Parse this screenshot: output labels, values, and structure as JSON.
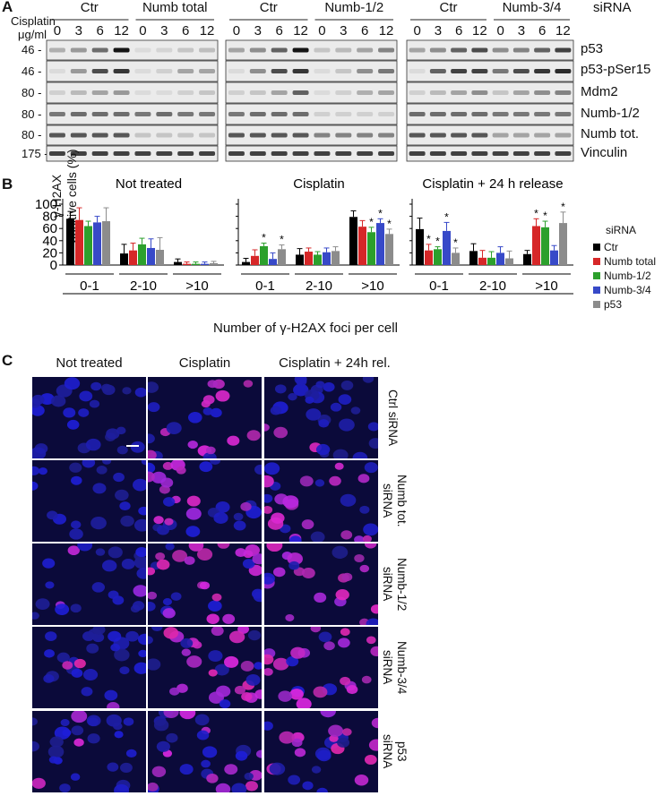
{
  "panelA": {
    "letter": "A",
    "treatment_label_line1": "Cisplatin",
    "treatment_label_line2": "μg/ml",
    "sirna_suffix": "siRNA",
    "groups": [
      {
        "header": "Ctr",
        "doses": [
          "0",
          "3",
          "6",
          "12"
        ]
      },
      {
        "header": "Numb total",
        "doses": [
          "0",
          "3",
          "6",
          "12"
        ]
      },
      {
        "header": "Ctr",
        "doses": [
          "0",
          "3",
          "6",
          "12"
        ]
      },
      {
        "header": "Numb-1/2",
        "doses": [
          "0",
          "3",
          "6",
          "12"
        ]
      },
      {
        "header": "Ctr",
        "doses": [
          "0",
          "3",
          "6",
          "12"
        ]
      },
      {
        "header": "Numb-3/4",
        "doses": [
          "0",
          "3",
          "6",
          "12"
        ]
      }
    ],
    "markers": [
      "46 -",
      "46 -",
      "80 -",
      "80 -",
      "80 -",
      "175 -"
    ],
    "bands": [
      "p53",
      "p53-pSer15",
      "Mdm2",
      "Numb-1/2",
      "Numb tot.",
      "Vinculin"
    ]
  },
  "panelB": {
    "letter": "B",
    "ylabel_line1": "γ-H2AX",
    "ylabel_line2": "positive cells (%)",
    "xlabel": "Number of γ-H2AX foci per cell",
    "legend_title": "siRNA",
    "chart_data": [
      {
        "type": "bar",
        "title": "Not treated",
        "categories": [
          "0-1",
          "2-10",
          ">10"
        ],
        "ylim": [
          0,
          100
        ],
        "yticks": [
          "0",
          "20",
          "40",
          "60",
          "80",
          "100"
        ],
        "series": [
          {
            "name": "Ctr",
            "values": [
              76,
              19,
              5
            ],
            "err": [
              12,
              15,
              5
            ],
            "color": "#000000"
          },
          {
            "name": "Numb total",
            "values": [
              74,
              24,
              2
            ],
            "err": [
              20,
              12,
              3
            ],
            "color": "#d62728"
          },
          {
            "name": "Numb-1/2",
            "values": [
              64,
              34,
              2
            ],
            "err": [
              8,
              10,
              3
            ],
            "color": "#2ca02c"
          },
          {
            "name": "Numb-3/4",
            "values": [
              70,
              28,
              2
            ],
            "err": [
              10,
              15,
              3
            ],
            "color": "#3749c8"
          },
          {
            "name": "p53",
            "values": [
              72,
              25,
              3
            ],
            "err": [
              22,
              20,
              3
            ],
            "color": "#8c8c8c"
          }
        ],
        "stars": [
          [],
          [],
          []
        ]
      },
      {
        "type": "bar",
        "title": "Cisplatin",
        "categories": [
          "0-1",
          "2-10",
          ">10"
        ],
        "ylim": [
          0,
          100
        ],
        "series": [
          {
            "name": "Ctr",
            "values": [
              5,
              17,
              79
            ],
            "err": [
              6,
              10,
              10
            ],
            "color": "#000000"
          },
          {
            "name": "Numb total",
            "values": [
              15,
              22,
              63
            ],
            "err": [
              10,
              6,
              10
            ],
            "color": "#d62728"
          },
          {
            "name": "Numb-1/2",
            "values": [
              31,
              17,
              54
            ],
            "err": [
              5,
              5,
              8
            ],
            "color": "#2ca02c"
          },
          {
            "name": "Numb-3/4",
            "values": [
              10,
              21,
              69
            ],
            "err": [
              10,
              7,
              7
            ],
            "color": "#3749c8"
          },
          {
            "name": "p53",
            "values": [
              26,
              23,
              51
            ],
            "err": [
              7,
              7,
              8
            ],
            "color": "#8c8c8c"
          }
        ],
        "stars": [
          [
            "",
            "",
            "*",
            "",
            "*"
          ],
          [
            "",
            "",
            "",
            "",
            ""
          ],
          [
            "",
            "",
            "*",
            "*",
            "*"
          ]
        ]
      },
      {
        "type": "bar",
        "title": "Cisplatin + 24 h release",
        "categories": [
          "0-1",
          "2-10",
          ">10"
        ],
        "ylim": [
          0,
          100
        ],
        "series": [
          {
            "name": "Ctr",
            "values": [
              59,
              23,
              18
            ],
            "err": [
              18,
              12,
              6
            ],
            "color": "#000000"
          },
          {
            "name": "Numb total",
            "values": [
              24,
              12,
              64
            ],
            "err": [
              10,
              12,
              12
            ],
            "color": "#d62728"
          },
          {
            "name": "Numb-1/2",
            "values": [
              26,
              12,
              62
            ],
            "err": [
              4,
              10,
              10
            ],
            "color": "#2ca02c"
          },
          {
            "name": "Numb-3/4",
            "values": [
              56,
              20,
              24
            ],
            "err": [
              14,
              10,
              8
            ],
            "color": "#3749c8"
          },
          {
            "name": "p53",
            "values": [
              20,
              11,
              69
            ],
            "err": [
              8,
              12,
              18
            ],
            "color": "#8c8c8c"
          }
        ],
        "stars": [
          [
            "",
            "*",
            "*",
            "*",
            "*"
          ],
          [
            "",
            "",
            "",
            "",
            ""
          ],
          [
            "",
            "*",
            "*",
            "",
            "*"
          ]
        ]
      }
    ]
  },
  "panelC": {
    "letter": "C",
    "columns": [
      "Not treated",
      "Cisplatin",
      "Cisplatin + 24h rel."
    ],
    "rows": [
      {
        "line1": "Ctrl siRNA",
        "line2": ""
      },
      {
        "line1": "Numb tot.",
        "line2": "siRNA"
      },
      {
        "line1": "Numb-1/2",
        "line2": "siRNA"
      },
      {
        "line1": "Numb-3/4",
        "line2": "siRNA"
      },
      {
        "line1": "p53",
        "line2": "siRNA"
      }
    ]
  }
}
